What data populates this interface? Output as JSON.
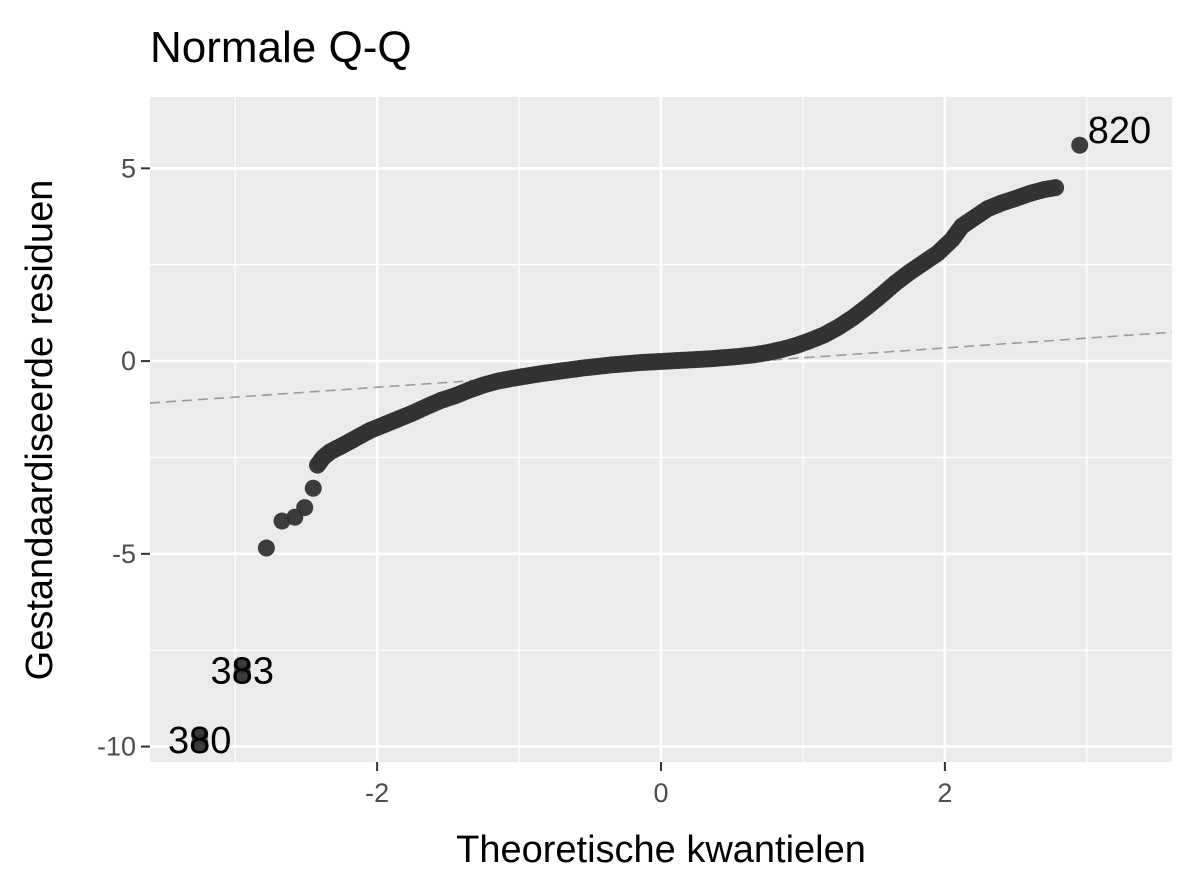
{
  "chart_data": {
    "type": "scatter",
    "title": "Normale Q-Q",
    "xlabel": "Theoretische kwantielen",
    "ylabel": "Gestandaardiseerde residuen",
    "xlim": [
      -3.6,
      3.6
    ],
    "ylim": [
      -10.4,
      6.85
    ],
    "x_ticks": [
      -2,
      0,
      2
    ],
    "x_tick_labels": [
      "-2",
      "0",
      "2"
    ],
    "y_ticks": [
      -10,
      -5,
      0,
      5
    ],
    "y_tick_labels": [
      "-10",
      "-5",
      "0",
      "5"
    ],
    "grid": true,
    "reference_line": {
      "slope": 0.255,
      "intercept": -0.17,
      "style": "dashed"
    },
    "series": [
      {
        "points": [
          [
            -3.25,
            -9.7
          ],
          [
            -3.25,
            -9.9
          ],
          [
            -2.95,
            -7.9
          ],
          [
            -2.95,
            -8.1
          ],
          [
            -2.78,
            -4.85
          ],
          [
            -2.67,
            -4.15
          ],
          [
            -2.58,
            -4.05
          ],
          [
            -2.51,
            -3.8
          ],
          [
            -2.45,
            -3.3
          ],
          [
            -2.42,
            -2.7
          ],
          [
            -2.38,
            -2.5
          ],
          [
            -2.33,
            -2.35
          ],
          [
            -2.25,
            -2.2
          ],
          [
            -2.15,
            -2.0
          ],
          [
            -2.05,
            -1.8
          ],
          [
            -1.95,
            -1.65
          ],
          [
            -1.85,
            -1.5
          ],
          [
            -1.75,
            -1.35
          ],
          [
            -1.65,
            -1.18
          ],
          [
            -1.55,
            -1.02
          ],
          [
            -1.45,
            -0.9
          ],
          [
            -1.35,
            -0.75
          ],
          [
            -1.25,
            -0.62
          ],
          [
            -1.15,
            -0.52
          ],
          [
            -1.05,
            -0.45
          ],
          [
            -0.95,
            -0.39
          ],
          [
            -0.85,
            -0.33
          ],
          [
            -0.75,
            -0.28
          ],
          [
            -0.65,
            -0.23
          ],
          [
            -0.55,
            -0.18
          ],
          [
            -0.45,
            -0.14
          ],
          [
            -0.35,
            -0.1
          ],
          [
            -0.25,
            -0.07
          ],
          [
            -0.15,
            -0.04
          ],
          [
            -0.05,
            -0.02
          ],
          [
            0.05,
            0.0
          ],
          [
            0.15,
            0.02
          ],
          [
            0.25,
            0.04
          ],
          [
            0.35,
            0.06
          ],
          [
            0.45,
            0.09
          ],
          [
            0.55,
            0.12
          ],
          [
            0.65,
            0.16
          ],
          [
            0.75,
            0.22
          ],
          [
            0.85,
            0.3
          ],
          [
            0.95,
            0.4
          ],
          [
            1.05,
            0.53
          ],
          [
            1.15,
            0.68
          ],
          [
            1.25,
            0.88
          ],
          [
            1.35,
            1.12
          ],
          [
            1.45,
            1.4
          ],
          [
            1.55,
            1.7
          ],
          [
            1.65,
            2.02
          ],
          [
            1.75,
            2.3
          ],
          [
            1.85,
            2.55
          ],
          [
            1.95,
            2.8
          ],
          [
            2.05,
            3.15
          ],
          [
            2.12,
            3.5
          ],
          [
            2.2,
            3.7
          ],
          [
            2.3,
            3.95
          ],
          [
            2.4,
            4.1
          ],
          [
            2.5,
            4.22
          ],
          [
            2.6,
            4.35
          ],
          [
            2.7,
            4.45
          ],
          [
            2.78,
            4.5
          ],
          [
            2.95,
            5.6
          ]
        ]
      }
    ],
    "annotations": [
      {
        "text": "820",
        "x": 2.95,
        "y": 5.6
      },
      {
        "text": "383",
        "x": -2.95,
        "y": -8.0
      },
      {
        "text": "380",
        "x": -3.25,
        "y": -9.8
      }
    ]
  }
}
